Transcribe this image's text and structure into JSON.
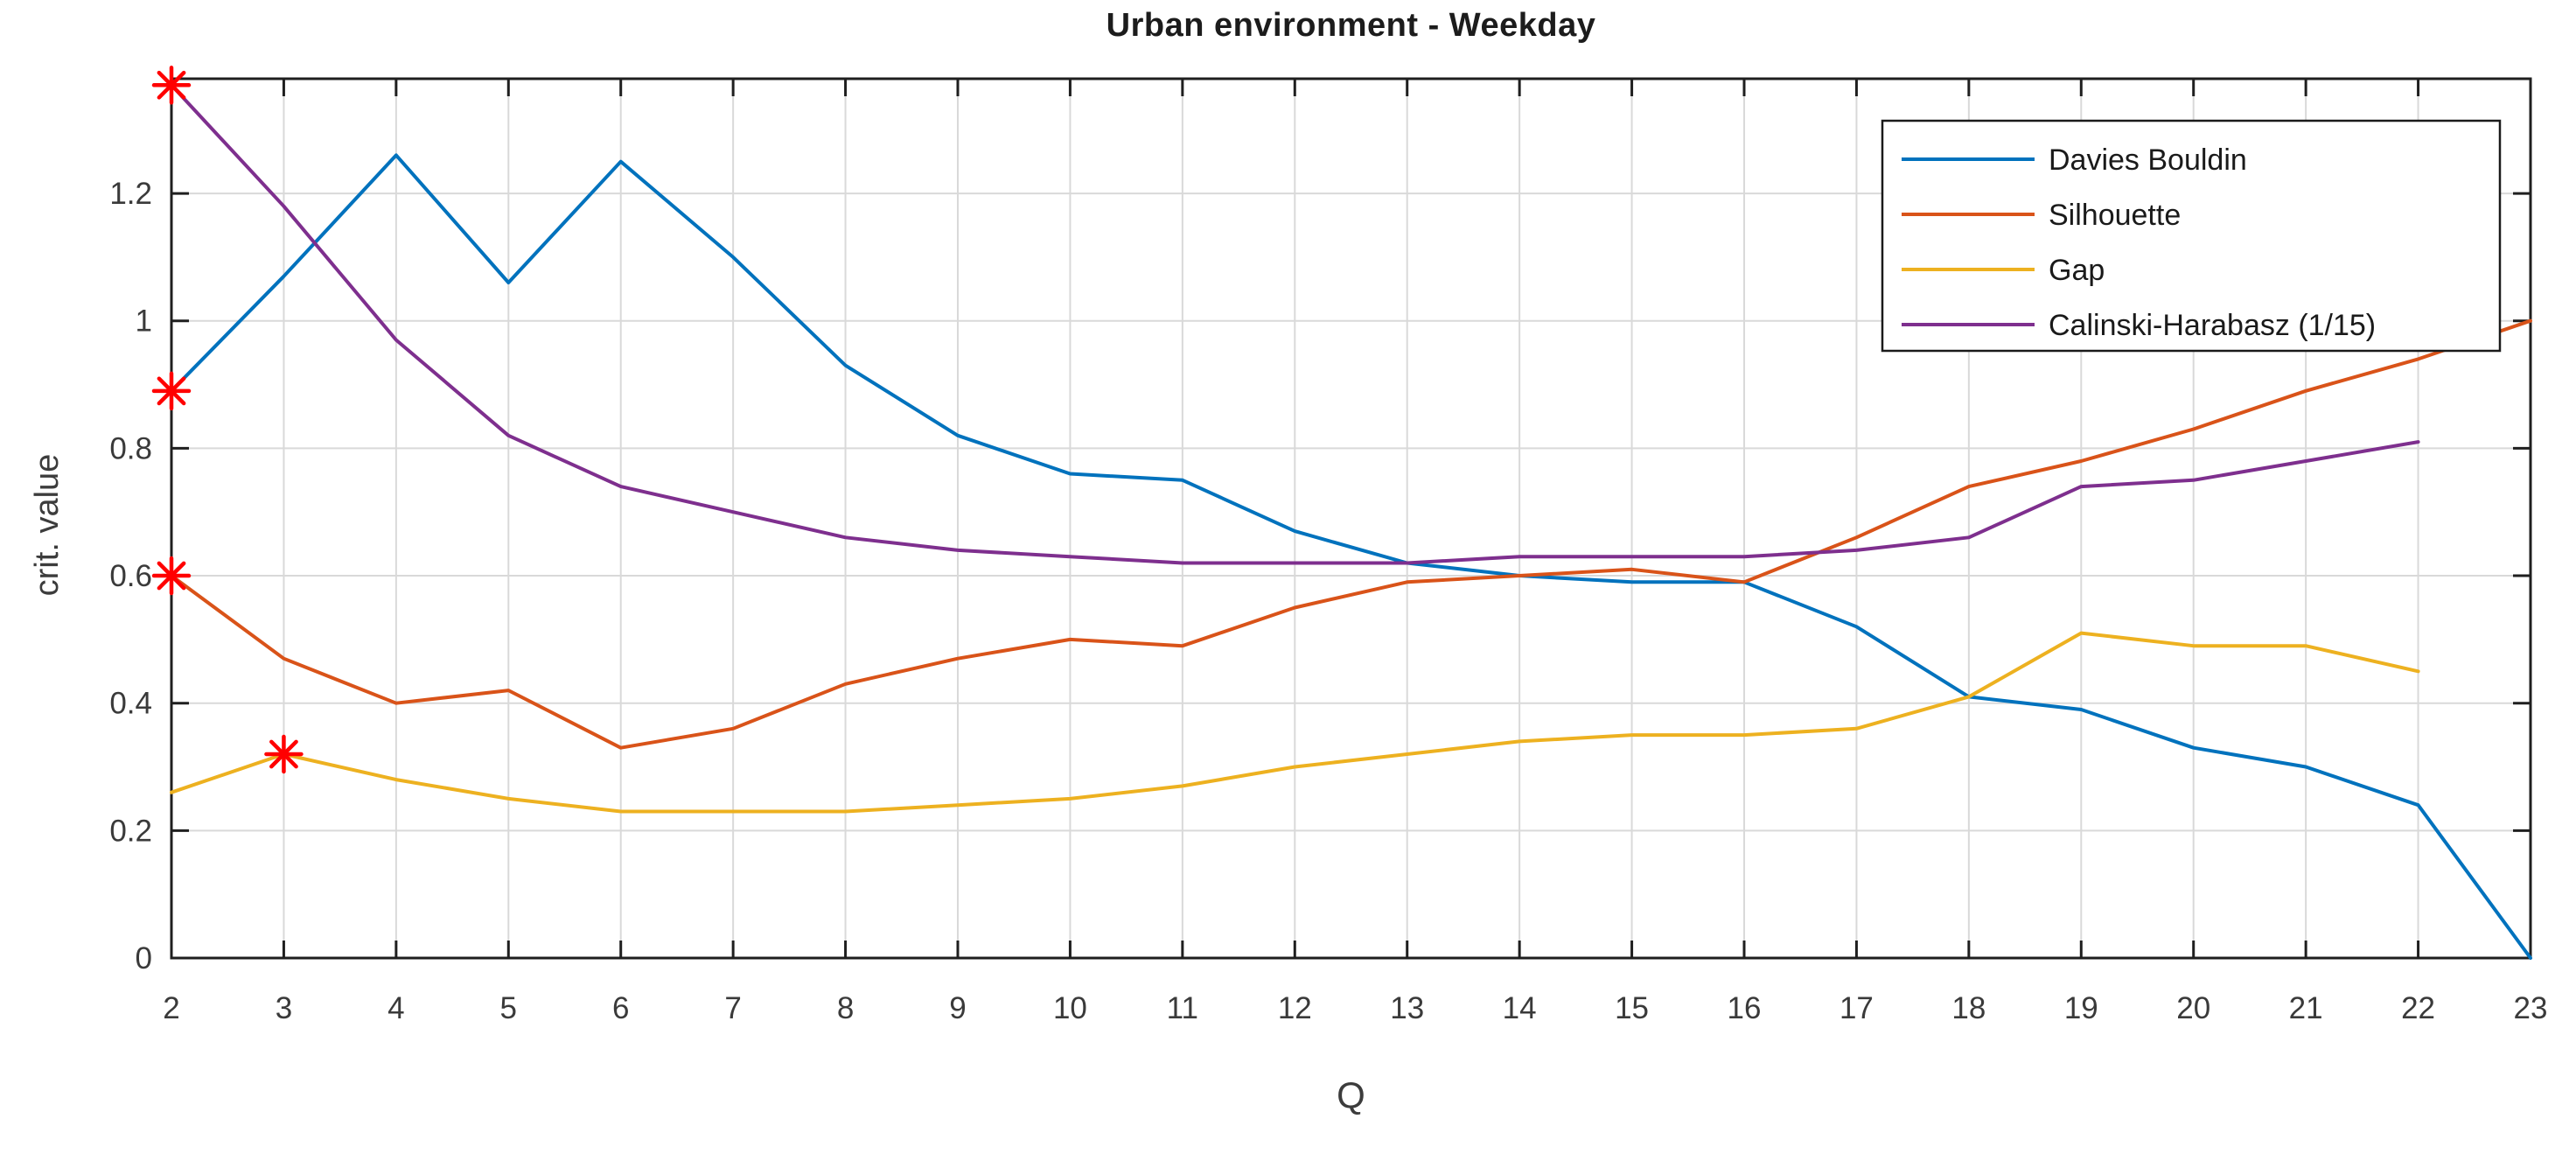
{
  "figure": {
    "background": "#ffffff",
    "axis_color": "#1f1f1f",
    "grid_color": "#d9d9d9",
    "tick_label_color": "#3a3a3a"
  },
  "chart_data": {
    "type": "line",
    "title": "Urban environment - Weekday",
    "xlabel": "Q",
    "ylabel": "crit. value",
    "x": [
      2,
      3,
      4,
      5,
      6,
      7,
      8,
      9,
      10,
      11,
      12,
      13,
      14,
      15,
      16,
      17,
      18,
      19,
      20,
      21,
      22,
      23
    ],
    "xlim": [
      2,
      23
    ],
    "ylim": [
      0,
      1.38
    ],
    "xticks": [
      2,
      3,
      4,
      5,
      6,
      7,
      8,
      9,
      10,
      11,
      12,
      13,
      14,
      15,
      16,
      17,
      18,
      19,
      20,
      21,
      22,
      23
    ],
    "xtick_labels": [
      "2",
      "3",
      "4",
      "5",
      "6",
      "7",
      "8",
      "9",
      "10",
      "11",
      "12",
      "13",
      "14",
      "15",
      "16",
      "17",
      "18",
      "19",
      "20",
      "21",
      "22",
      "23"
    ],
    "yticks": [
      0,
      0.2,
      0.4,
      0.6,
      0.8,
      1,
      1.2
    ],
    "ytick_labels": [
      "0",
      "0.2",
      "0.4",
      "0.6",
      "0.8",
      "1",
      "1.2"
    ],
    "grid": true,
    "legend_position": "top-right",
    "series": [
      {
        "name": "Davies Bouldin",
        "color": "#0072BD",
        "values": [
          0.89,
          1.07,
          1.26,
          1.06,
          1.25,
          1.1,
          0.93,
          0.82,
          0.76,
          0.75,
          0.67,
          0.62,
          0.6,
          0.59,
          0.59,
          0.52,
          0.41,
          0.39,
          0.33,
          0.3,
          0.24,
          0.0
        ]
      },
      {
        "name": "Silhouette",
        "color": "#D95319",
        "values": [
          0.6,
          0.47,
          0.4,
          0.42,
          0.33,
          0.36,
          0.43,
          0.47,
          0.5,
          0.49,
          0.55,
          0.59,
          0.6,
          0.61,
          0.59,
          0.66,
          0.74,
          0.78,
          0.83,
          0.89,
          0.94,
          1.0
        ]
      },
      {
        "name": "Gap",
        "color": "#EDB120",
        "values": [
          0.26,
          0.32,
          0.28,
          0.25,
          0.23,
          0.23,
          0.23,
          0.24,
          0.25,
          0.27,
          0.3,
          0.32,
          0.34,
          0.35,
          0.35,
          0.36,
          0.41,
          0.51,
          0.49,
          0.49,
          0.45,
          null
        ]
      },
      {
        "name": "Calinski-Harabasz (1/15)",
        "color": "#7E2F8E",
        "values": [
          1.37,
          1.18,
          0.97,
          0.82,
          0.74,
          0.7,
          0.66,
          0.64,
          0.63,
          0.62,
          0.62,
          0.62,
          0.63,
          0.63,
          0.63,
          0.64,
          0.66,
          0.74,
          0.75,
          0.78,
          0.81,
          null
        ]
      }
    ],
    "markers": [
      {
        "series": "Calinski-Harabasz (1/15)",
        "x": 2,
        "y": 1.37,
        "symbol": "asterisk",
        "color": "#FF0000"
      },
      {
        "series": "Davies Bouldin",
        "x": 2,
        "y": 0.89,
        "symbol": "asterisk",
        "color": "#FF0000"
      },
      {
        "series": "Silhouette",
        "x": 2,
        "y": 0.6,
        "symbol": "asterisk",
        "color": "#FF0000"
      },
      {
        "series": "Gap",
        "x": 3,
        "y": 0.32,
        "symbol": "asterisk",
        "color": "#FF0000"
      }
    ],
    "legend": {
      "entries": [
        "Davies Bouldin",
        "Silhouette",
        "Gap",
        "Calinski-Harabasz (1/15)"
      ]
    }
  }
}
